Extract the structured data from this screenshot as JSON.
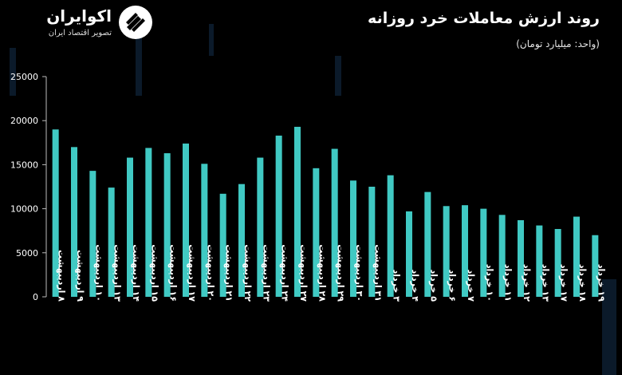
{
  "brand": {
    "name": "اکوایران",
    "tagline": "تصویر اقتصاد ایران",
    "logo_icon": "ecoiran-logo-icon"
  },
  "header": {
    "title": "روند ارزش معاملات خرد روزانه",
    "unit": "(واحد: میلیارد تومان)"
  },
  "colors": {
    "bar": "#40c9c3",
    "background": "#000000",
    "text": "#ffffff"
  },
  "chart_data": {
    "type": "bar",
    "ylim": [
      0,
      25000
    ],
    "yticks": [
      {
        "value": 0,
        "label": "0"
      },
      {
        "value": 5000,
        "label": "5000"
      },
      {
        "value": 10000,
        "label": "10000"
      },
      {
        "value": 15000,
        "label": "15000"
      },
      {
        "value": 20000,
        "label": "20000"
      },
      {
        "value": 25000,
        "label": "25000"
      }
    ],
    "grid": false,
    "categories": [
      "۸ اردیبهشت",
      "۹ اردیبهشت",
      "۱۰ اردیبهشت",
      "۱۳ اردیبهشت",
      "۱۴ اردیبهشت",
      "۱۵ اردیبهشت",
      "۱۶ اردیبهشت",
      "۱۷ اردیبهشت",
      "۲۰ اردیبهشت",
      "۲۱ اردیبهشت",
      "۲۲ اردیبهشت",
      "۲۳ اردیبهشت",
      "۲۴ اردیبهشت",
      "۲۷ اردیبهشت",
      "۲۸ اردیبهشت",
      "۲۹ اردیبهشت",
      "۳۰ اردیبهشت",
      "۳۱ اردیبهشت",
      "۳ خرداد",
      "۴ خرداد",
      "۵ خرداد",
      "۶ خرداد",
      "۷ خرداد",
      "۱۰ خرداد",
      "۱۱ خرداد",
      "۱۲ خرداد",
      "۱۳ خرداد",
      "۱۷ خرداد",
      "۱۸ خرداد",
      "۱۹ خرداد"
    ],
    "values": [
      19000,
      17000,
      14300,
      12400,
      15800,
      16900,
      16300,
      17400,
      15100,
      11700,
      12800,
      15800,
      18300,
      19300,
      14600,
      16800,
      13200,
      12500,
      13800,
      9700,
      11900,
      10300,
      10400,
      10000,
      9300,
      8700,
      8100,
      7700,
      9100,
      7000
    ]
  }
}
